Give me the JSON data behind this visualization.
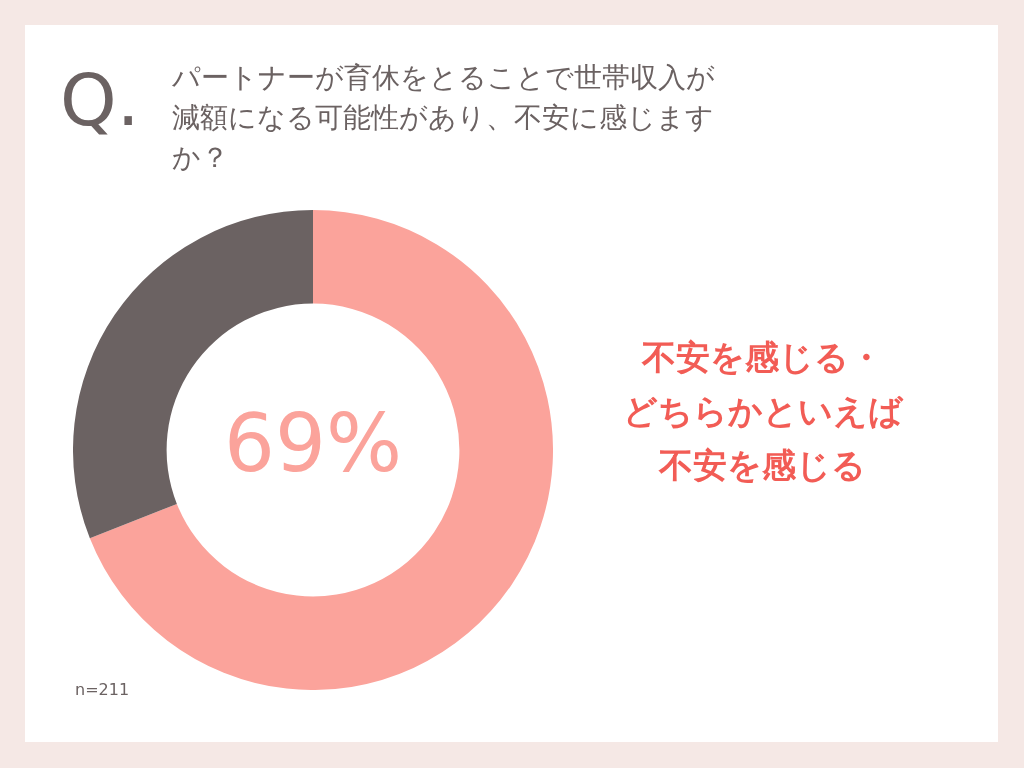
{
  "chart_data": {
    "type": "donut",
    "title": "Q.パートナーが育休をとることで世帯収入が減額になる可能性があり、不安に感じますか？",
    "categories": [
      "不安を感じる・どちらかといえば不安を感じる",
      null
    ],
    "values": [
      69,
      31
    ],
    "colors": [
      "#fba39b",
      "#6b6262"
    ],
    "value_labels": [
      "69%",
      null
    ],
    "annotations": [
      "n=211"
    ],
    "legend": false
  }
}
